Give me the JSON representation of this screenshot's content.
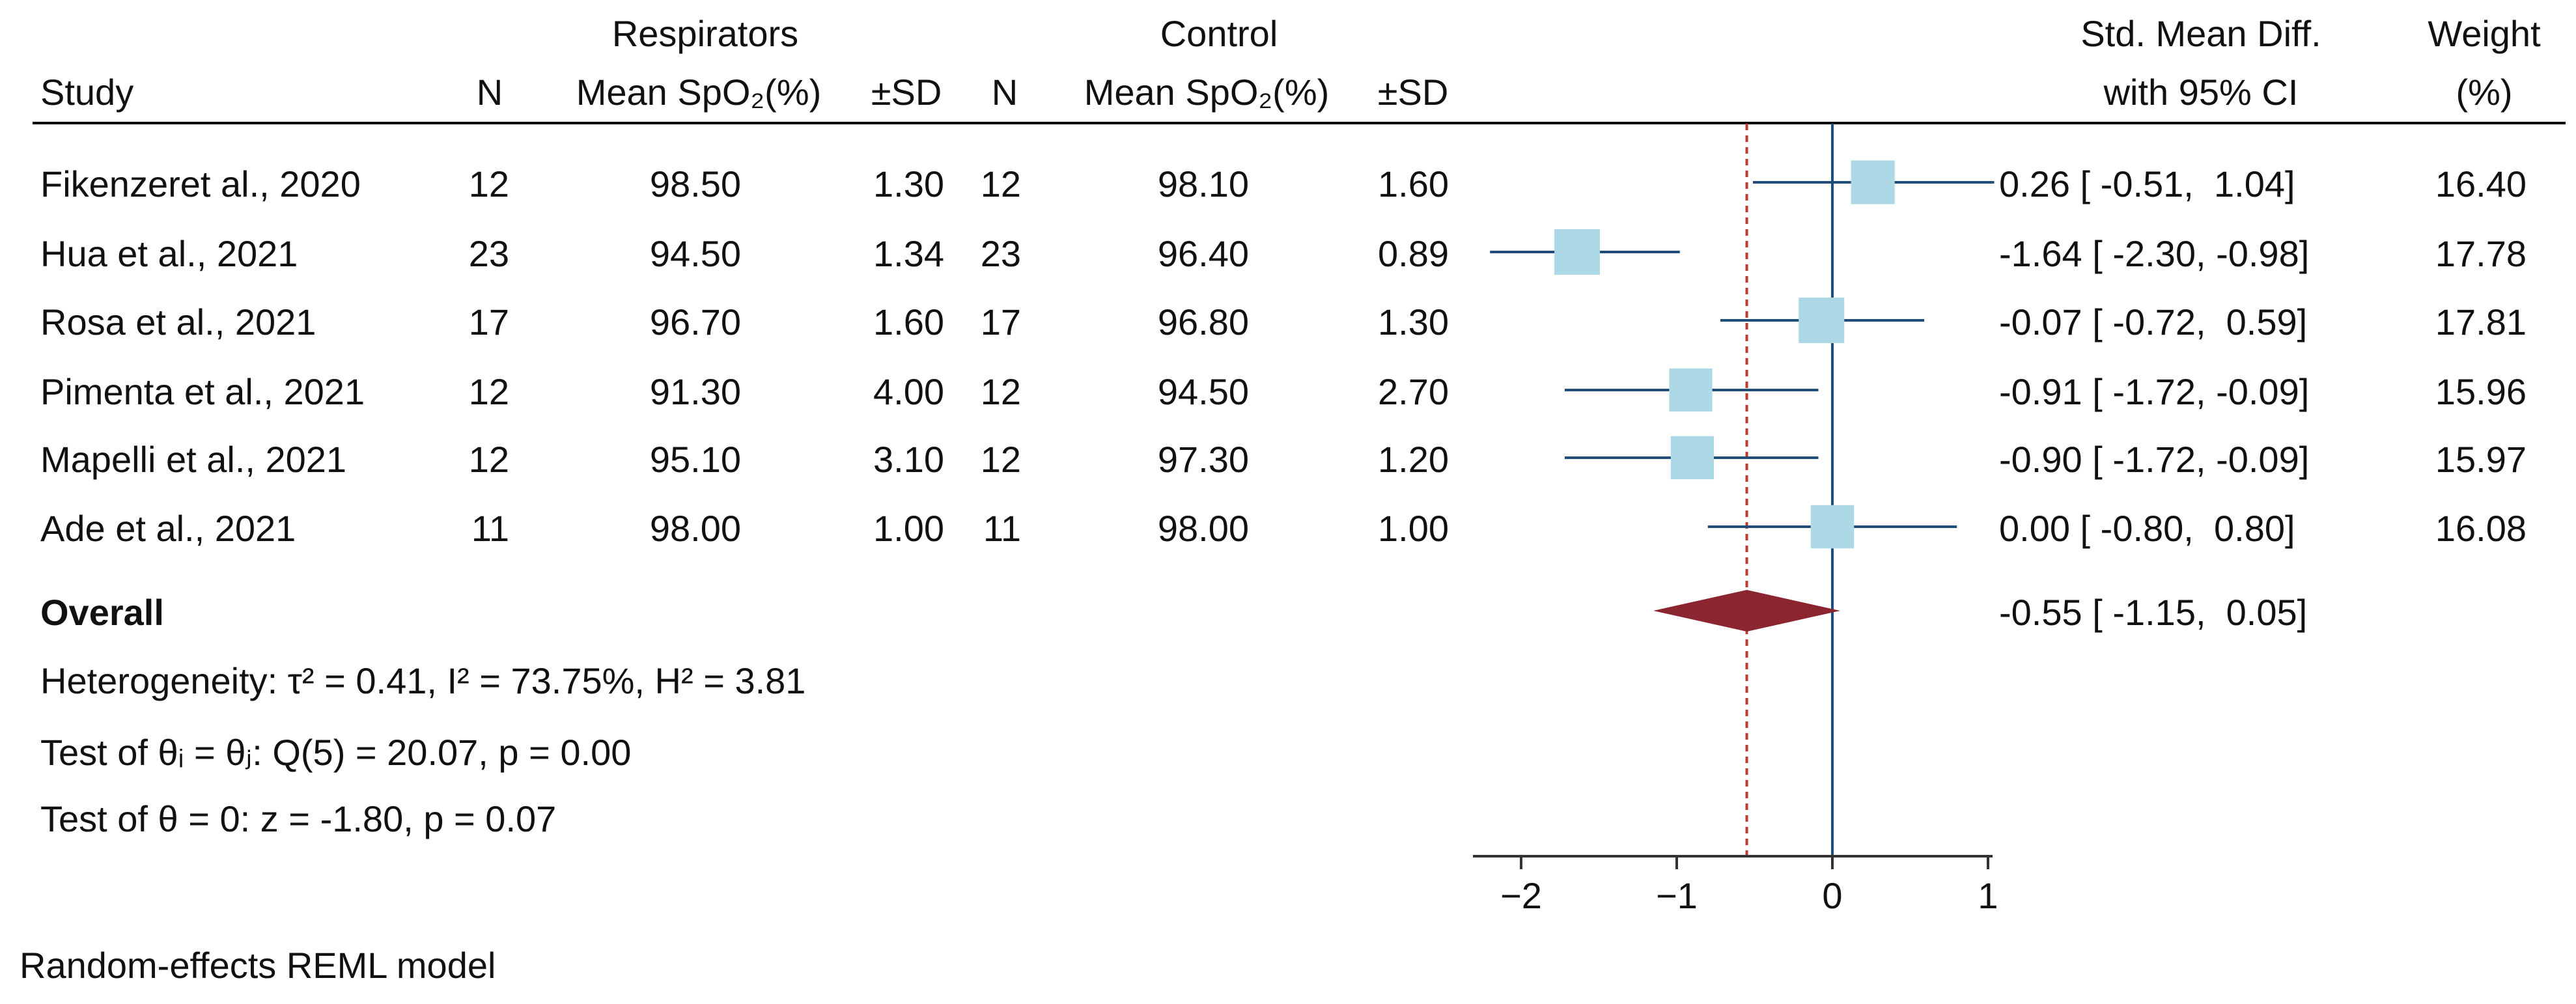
{
  "headers": {
    "study": "Study",
    "group1": "Respirators",
    "group2": "Control",
    "n": "N",
    "mean_spo2": "Mean SpO₂(%)",
    "sd": "±SD",
    "effect_line1": "Std. Mean Diff.",
    "effect_line2": "with 95% CI",
    "weight_line1": "Weight",
    "weight_line2": "(%)"
  },
  "studies": [
    {
      "name": "Fikenzeret al., 2020",
      "n1": "12",
      "mean1": "98.50",
      "sd1": "1.30",
      "n2": "12",
      "mean2": "98.10",
      "sd2": "1.60",
      "ci_text": "0.26 [ -0.51,  1.04]",
      "weight": "16.40"
    },
    {
      "name": "Hua et al., 2021",
      "n1": "23",
      "mean1": "94.50",
      "sd1": "1.34",
      "n2": "23",
      "mean2": "96.40",
      "sd2": "0.89",
      "ci_text": "-1.64 [ -2.30, -0.98]",
      "weight": "17.78"
    },
    {
      "name": "Rosa et al., 2021",
      "n1": "17",
      "mean1": "96.70",
      "sd1": "1.60",
      "n2": "17",
      "mean2": "96.80",
      "sd2": "1.30",
      "ci_text": "-0.07 [ -0.72,  0.59]",
      "weight": "17.81"
    },
    {
      "name": "Pimenta et al., 2021",
      "n1": "12",
      "mean1": "91.30",
      "sd1": "4.00",
      "n2": "12",
      "mean2": "94.50",
      "sd2": "2.70",
      "ci_text": "-0.91 [ -1.72, -0.09]",
      "weight": "15.96"
    },
    {
      "name": "Mapelli et al., 2021",
      "n1": "12",
      "mean1": "95.10",
      "sd1": "3.10",
      "n2": "12",
      "mean2": "97.30",
      "sd2": "1.20",
      "ci_text": "-0.90 [ -1.72, -0.09]",
      "weight": "15.97"
    },
    {
      "name": "Ade et al., 2021",
      "n1": "11",
      "mean1": "98.00",
      "sd1": "1.00",
      "n2": "11",
      "mean2": "98.00",
      "sd2": "1.00",
      "ci_text": "0.00 [ -0.80,  0.80]",
      "weight": "16.08"
    }
  ],
  "overall": {
    "label": "Overall",
    "ci_text": "-0.55 [ -1.15,  0.05]"
  },
  "stats": {
    "heterogeneity": "Heterogeneity: τ² = 0.41, I² = 73.75%, H² = 3.81",
    "test_equal": "Test of θᵢ = θⱼ: Q(5) = 20.07, p = 0.00",
    "test_zero": "Test of θ = 0: z = -1.80, p = 0.07"
  },
  "footnote": "Random-effects REML model",
  "chart_data": {
    "type": "forest",
    "xlim": [
      -2.2,
      1
    ],
    "xticks": [
      -2,
      -1,
      0,
      1
    ],
    "xtick_labels": [
      "−2",
      "−1",
      "0",
      "1"
    ],
    "null_line": 0,
    "estimates": [
      {
        "study": "Fikenzeret al., 2020",
        "smd": 0.26,
        "lo": -0.51,
        "hi": 1.04,
        "weight": 16.4
      },
      {
        "study": "Hua et al., 2021",
        "smd": -1.64,
        "lo": -2.3,
        "hi": -0.98,
        "weight": 17.78
      },
      {
        "study": "Rosa et al., 2021",
        "smd": -0.07,
        "lo": -0.72,
        "hi": 0.59,
        "weight": 17.81
      },
      {
        "study": "Pimenta et al., 2021",
        "smd": -0.91,
        "lo": -1.72,
        "hi": -0.09,
        "weight": 15.96
      },
      {
        "study": "Mapelli et al., 2021",
        "smd": -0.9,
        "lo": -1.72,
        "hi": -0.09,
        "weight": 15.97
      },
      {
        "study": "Ade et al., 2021",
        "smd": 0.0,
        "lo": -0.8,
        "hi": 0.8,
        "weight": 16.08
      }
    ],
    "overall": {
      "smd": -0.55,
      "lo": -1.15,
      "hi": 0.05
    },
    "colors": {
      "box": "#add8e6",
      "ci_line": "#1f4e79",
      "diamond": "#8b2530",
      "null_line": "#1f4e79",
      "overall_line": "#c0392b",
      "axis": "#333333"
    }
  }
}
